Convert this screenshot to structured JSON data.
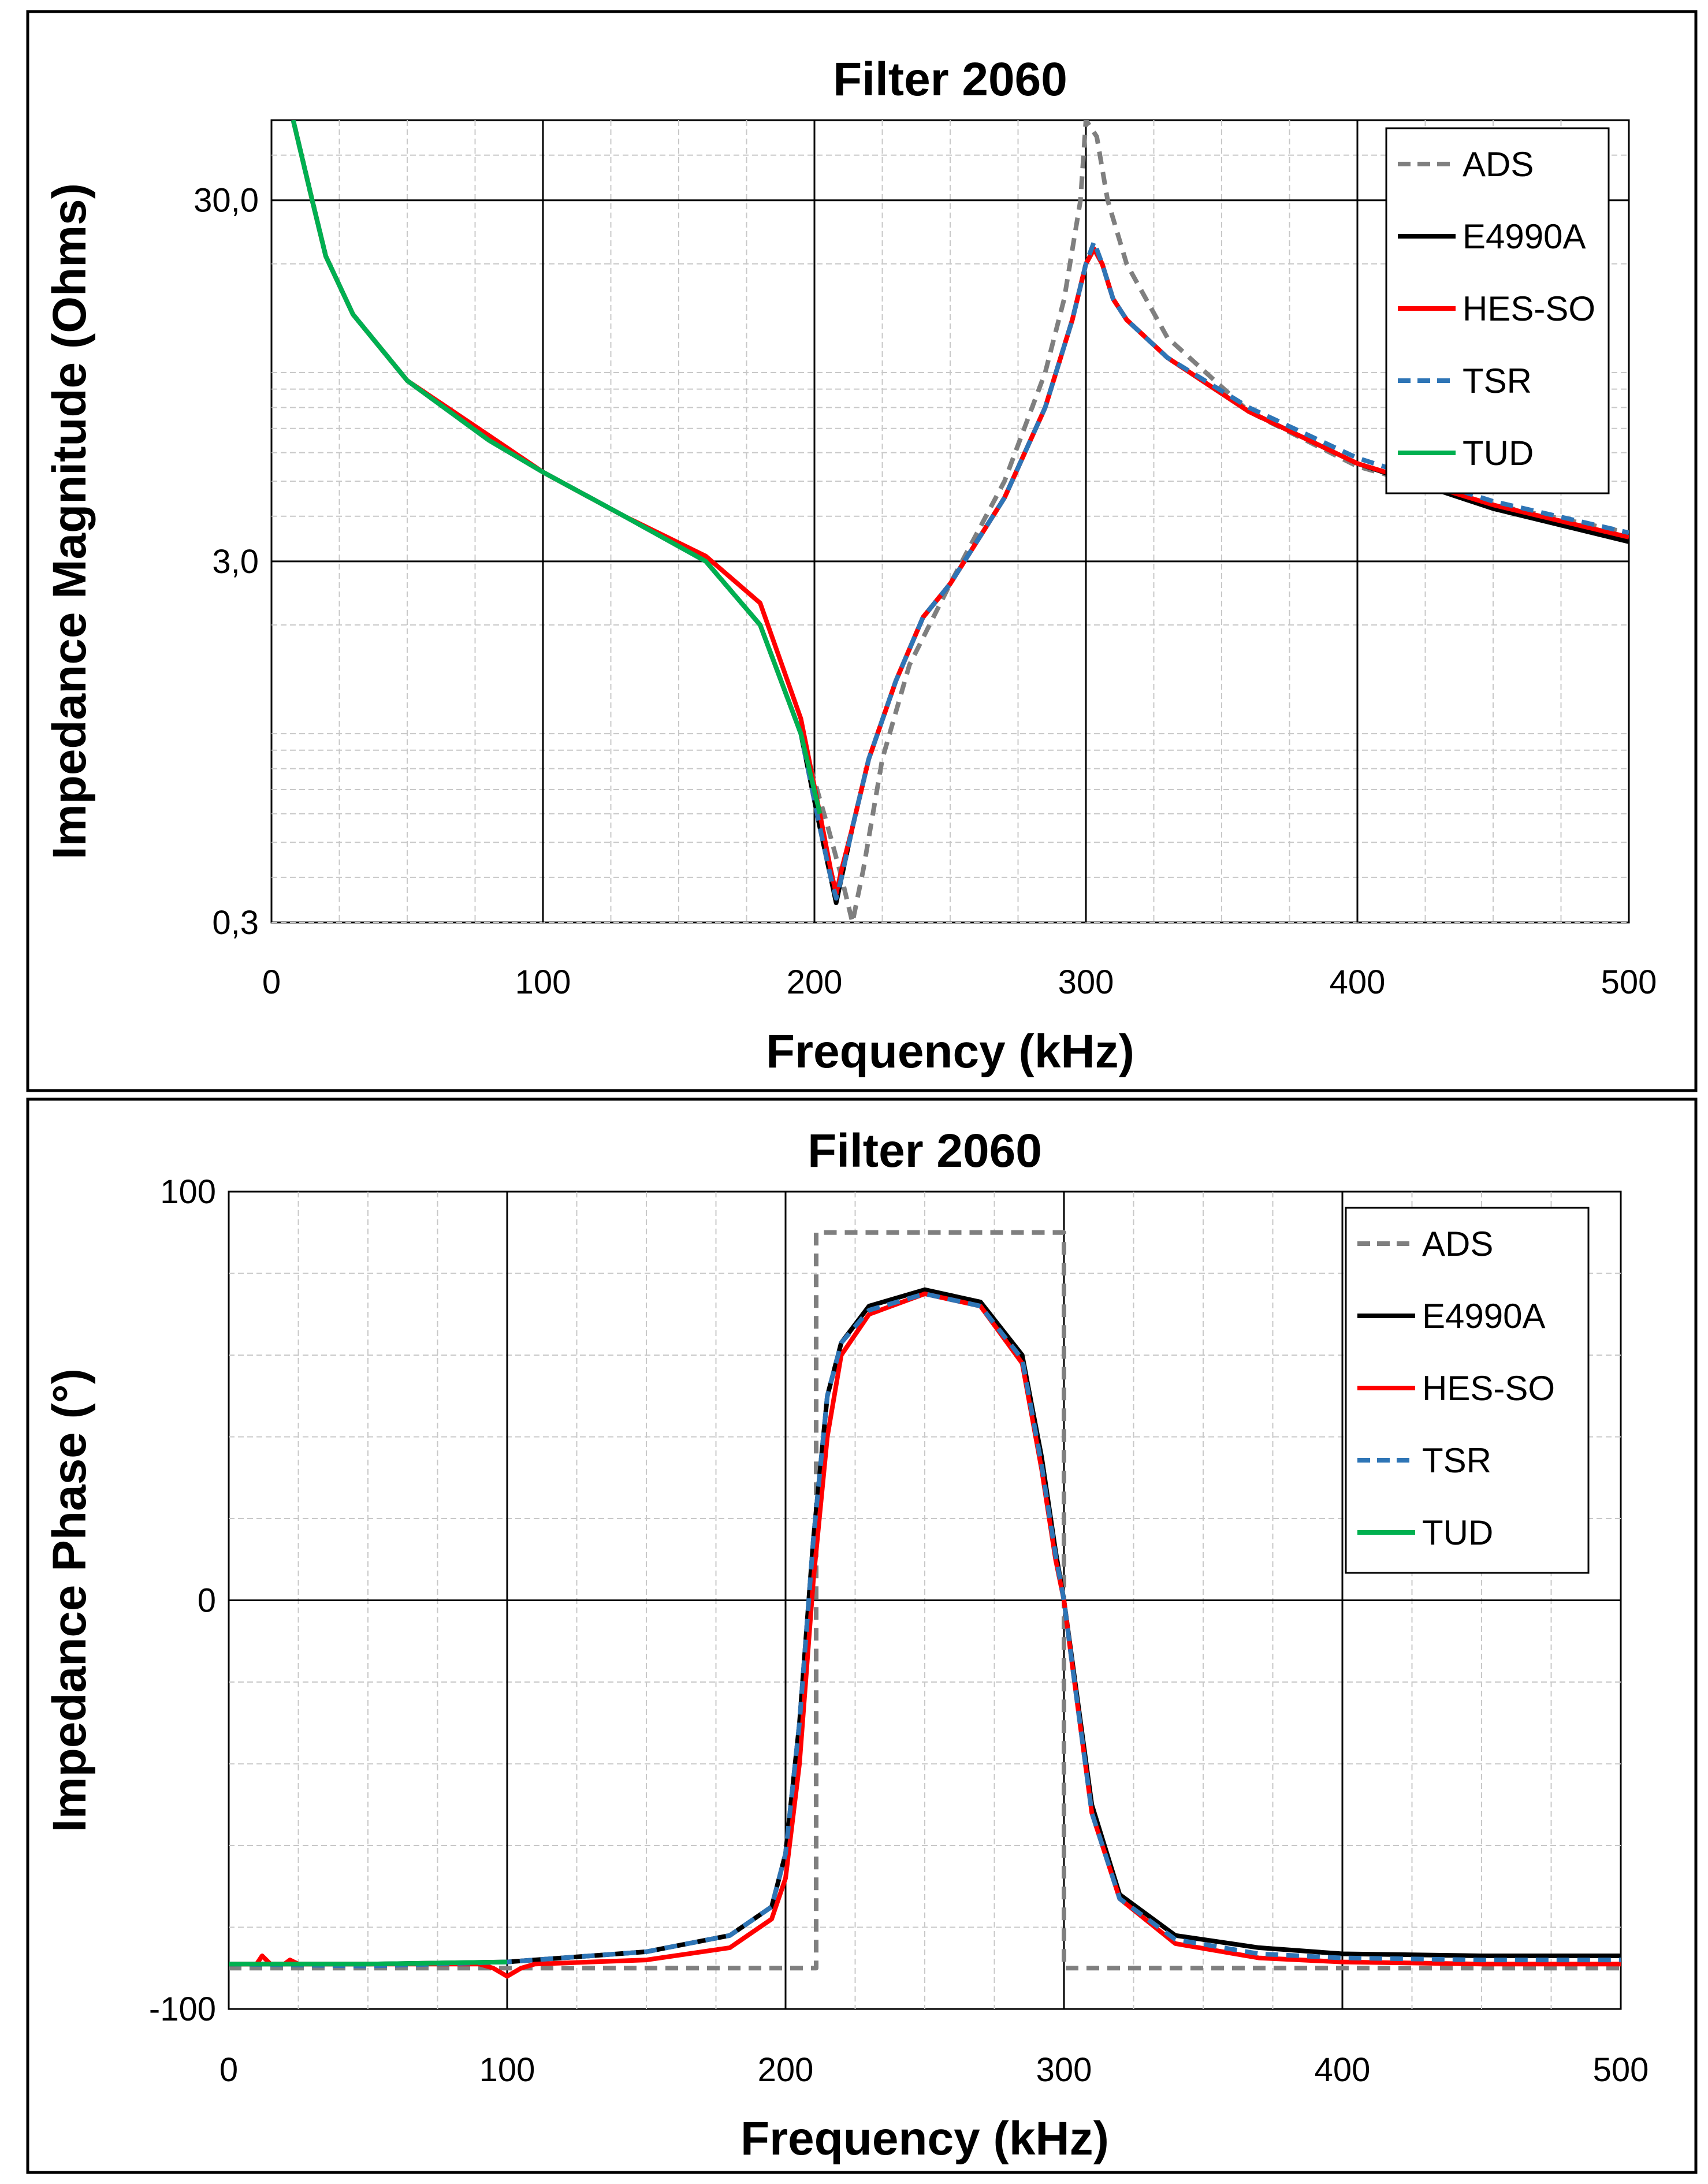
{
  "colors": {
    "ADS": "#7f7f7f",
    "E4990A": "#000000",
    "HES-SO": "#ff0000",
    "TSR": "#2e75b6",
    "TUD": "#00b050"
  },
  "chart_data": [
    {
      "type": "line",
      "title": "Filter 2060",
      "xlabel": "Frequency (kHz)",
      "ylabel": "Impedance Magnitude (Ohms)",
      "yscale": "log",
      "xlim": [
        0,
        500
      ],
      "ylim": [
        0.3,
        50
      ],
      "x_ticks": [
        "0",
        "100",
        "200",
        "300",
        "400",
        "500"
      ],
      "y_ticks": [
        {
          "value": 0.3,
          "label": "0,3"
        },
        {
          "value": 3,
          "label": "3,0"
        },
        {
          "value": 30,
          "label": "30,0"
        }
      ],
      "grid": true,
      "legend_position": "top-right",
      "series": [
        {
          "name": "ADS",
          "style": "dashed",
          "x": [
            8,
            15,
            20,
            30,
            50,
            80,
            100,
            130,
            160,
            180,
            195,
            205,
            210,
            214,
            218,
            225,
            235,
            250,
            270,
            285,
            292,
            298,
            300,
            304,
            308,
            315,
            330,
            360,
            400,
            450,
            500
          ],
          "y": [
            50,
            30,
            21,
            14.5,
            9.5,
            6.5,
            5.3,
            4,
            3,
            2,
            1,
            0.55,
            0.4,
            0.3,
            0.42,
            0.85,
            1.55,
            2.6,
            5,
            10,
            16,
            30,
            50,
            45,
            30,
            20,
            12.5,
            7.8,
            5.5,
            4.3,
            3.6
          ]
        },
        {
          "name": "E4990A",
          "style": "solid",
          "x": [
            8,
            15,
            20,
            30,
            50,
            80,
            100,
            130,
            160,
            180,
            195,
            202,
            206,
            208,
            210,
            214,
            220,
            230,
            240,
            250,
            270,
            285,
            295,
            300,
            303,
            306,
            310,
            315,
            330,
            360,
            400,
            450,
            500
          ],
          "y": [
            50,
            30,
            21,
            14.5,
            9.5,
            6.5,
            5.3,
            4,
            3,
            2,
            1,
            0.55,
            0.4,
            0.34,
            0.4,
            0.55,
            0.85,
            1.4,
            2.1,
            2.6,
            4.5,
            8,
            14,
            20,
            22,
            20,
            16,
            14,
            11,
            7.8,
            5.6,
            4.2,
            3.4
          ]
        },
        {
          "name": "HES-SO",
          "style": "solid",
          "x": [
            8,
            15,
            20,
            30,
            50,
            80,
            100,
            130,
            160,
            180,
            195,
            202,
            206,
            208,
            210,
            214,
            220,
            230,
            240,
            250,
            270,
            285,
            295,
            300,
            303,
            306,
            310,
            315,
            330,
            360,
            400,
            450,
            500
          ],
          "y": [
            50,
            30,
            21,
            14.5,
            9.5,
            6.7,
            5.3,
            4,
            3.1,
            2.3,
            1.1,
            0.6,
            0.42,
            0.36,
            0.42,
            0.55,
            0.85,
            1.4,
            2.1,
            2.6,
            4.5,
            8,
            14,
            20,
            22,
            20,
            16,
            14,
            11,
            7.8,
            5.6,
            4.3,
            3.5
          ]
        },
        {
          "name": "TSR",
          "style": "dashed",
          "x": [
            8,
            15,
            20,
            30,
            50,
            80,
            100,
            130,
            160,
            180,
            195,
            202,
            206,
            208,
            210,
            214,
            220,
            230,
            240,
            250,
            270,
            285,
            295,
            300,
            303,
            306,
            310,
            315,
            330,
            360,
            400,
            450,
            500
          ],
          "y": [
            50,
            30,
            21,
            14.5,
            9.5,
            6.5,
            5.3,
            4,
            3,
            2,
            1,
            0.55,
            0.4,
            0.35,
            0.4,
            0.55,
            0.85,
            1.4,
            2.1,
            2.6,
            4.5,
            8,
            14,
            20,
            23,
            20,
            16,
            14,
            11,
            8,
            5.8,
            4.4,
            3.6
          ]
        },
        {
          "name": "TUD",
          "style": "solid",
          "x": [
            8,
            15,
            20,
            30,
            50,
            80,
            100,
            130,
            160,
            180,
            195,
            202
          ],
          "y": [
            50,
            30,
            21,
            14.5,
            9.5,
            6.5,
            5.3,
            4,
            3,
            2,
            1,
            0.6
          ]
        }
      ]
    },
    {
      "type": "line",
      "title": "Filter 2060",
      "xlabel": "Frequency (kHz)",
      "ylabel": "Impedance Phase (°)",
      "xlim": [
        0,
        500
      ],
      "ylim": [
        -100,
        100
      ],
      "x_ticks": [
        "0",
        "100",
        "200",
        "300",
        "400",
        "500"
      ],
      "y_ticks": [
        {
          "value": 100,
          "label": "100"
        },
        {
          "value": 0,
          "label": "0"
        },
        {
          "value": -100,
          "label": "-100"
        }
      ],
      "grid": true,
      "legend_position": "top-right",
      "series": [
        {
          "name": "ADS",
          "style": "dashed",
          "x": [
            0,
            211,
            211,
            300,
            300,
            500
          ],
          "y": [
            -90,
            -90,
            90,
            90,
            -90,
            -90
          ]
        },
        {
          "name": "E4990A",
          "style": "solid",
          "x": [
            0,
            50,
            100,
            150,
            180,
            195,
            200,
            205,
            210,
            215,
            220,
            230,
            250,
            270,
            285,
            292,
            297,
            300,
            303,
            310,
            320,
            340,
            370,
            400,
            450,
            500
          ],
          "y": [
            -89,
            -89,
            -88.5,
            -86,
            -82,
            -75,
            -62,
            -30,
            15,
            50,
            63,
            72,
            76,
            73,
            60,
            35,
            12,
            0,
            -15,
            -50,
            -72,
            -82,
            -85,
            -86.5,
            -87,
            -87
          ]
        },
        {
          "name": "HES-SO",
          "style": "solid",
          "x": [
            0,
            10,
            12,
            15,
            20,
            22,
            25,
            50,
            90,
            95,
            100,
            105,
            110,
            150,
            180,
            195,
            200,
            205,
            210,
            215,
            220,
            230,
            250,
            270,
            285,
            292,
            297,
            300,
            303,
            310,
            320,
            340,
            370,
            400,
            450,
            500
          ],
          "y": [
            -89,
            -89,
            -87,
            -89,
            -89,
            -88,
            -89,
            -89,
            -89,
            -90,
            -92,
            -90,
            -89,
            -88,
            -85,
            -78,
            -68,
            -40,
            5,
            40,
            60,
            70,
            75,
            72,
            58,
            32,
            10,
            0,
            -16,
            -52,
            -73,
            -84,
            -87.5,
            -88.5,
            -89,
            -89
          ]
        },
        {
          "name": "TSR",
          "style": "dashed",
          "x": [
            0,
            50,
            100,
            150,
            180,
            195,
            200,
            205,
            210,
            215,
            220,
            230,
            250,
            270,
            285,
            292,
            297,
            300,
            303,
            310,
            320,
            340,
            370,
            400,
            450,
            500
          ],
          "y": [
            -89,
            -89.5,
            -88.5,
            -86,
            -82,
            -75,
            -62,
            -30,
            15,
            50,
            63,
            71,
            75,
            72,
            59,
            33,
            11,
            0,
            -16,
            -52,
            -73,
            -83,
            -86.5,
            -87.5,
            -88,
            -88
          ]
        },
        {
          "name": "TUD",
          "style": "solid",
          "x": [
            0,
            20,
            50,
            100
          ],
          "y": [
            -89,
            -89,
            -89,
            -88.5
          ]
        }
      ]
    }
  ]
}
